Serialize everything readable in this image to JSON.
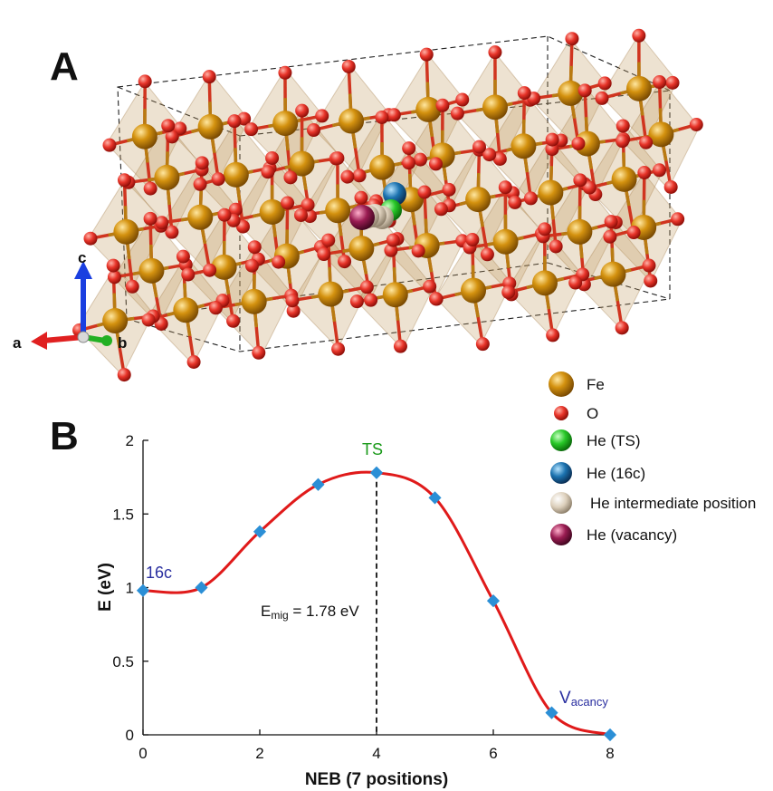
{
  "panel_a": {
    "label": "A",
    "axes": {
      "a": "a",
      "b": "b",
      "c": "c"
    }
  },
  "panel_b": {
    "label": "B"
  },
  "legend": [
    {
      "label": "Fe",
      "color": "#c8860d",
      "icon": "fe-sphere-icon"
    },
    {
      "label": "O",
      "color": "#e8382e",
      "icon": "o-sphere-icon"
    },
    {
      "label": "He (TS)",
      "color": "#22c322",
      "icon": "he-ts-sphere-icon"
    },
    {
      "label": "He (16c)",
      "color": "#1c6fa8",
      "icon": "he-16c-sphere-icon"
    },
    {
      "label": "He intermediate position",
      "color": "#d8cbb8",
      "icon": "he-intermediate-sphere-icon"
    },
    {
      "label": "He (vacancy)",
      "color": "#8e1c4c",
      "icon": "he-vacancy-sphere-icon"
    }
  ],
  "chart_data": {
    "type": "line",
    "xlabel": "NEB (7 positions)",
    "ylabel": "E (eV)",
    "xlim": [
      0,
      8
    ],
    "ylim": [
      0,
      2
    ],
    "xticks": [
      "0",
      "2",
      "4",
      "6",
      "8"
    ],
    "yticks": [
      "0",
      "0.5",
      "1",
      "1.5",
      "2"
    ],
    "grid": false,
    "series": [
      {
        "x": [
          0,
          1,
          2,
          3,
          4,
          5,
          6,
          7,
          8
        ],
        "y": [
          0.98,
          1.0,
          1.38,
          1.7,
          1.78,
          1.61,
          0.91,
          0.15,
          0.0
        ],
        "line_color": "#e01a1a",
        "marker_color": "#2b8fd6"
      }
    ],
    "annotations": {
      "start_label": "16c",
      "ts_label": "TS",
      "vacancy_main": "V",
      "vacancy_sub": "acancy",
      "emig_main": "E",
      "emig_sub": "mig",
      "emig_value": " = 1.78 eV"
    },
    "colors": {
      "ts": "#1a9a1a",
      "site": "#2a2fa0"
    }
  }
}
